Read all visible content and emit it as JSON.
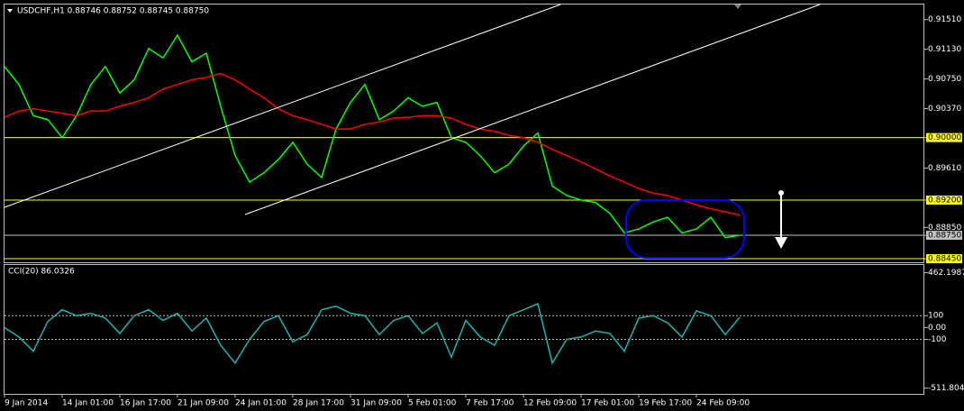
{
  "chart_data": [
    {
      "type": "line",
      "title": "USDCHF,H1  0.88746 0.88752 0.88745 0.88750",
      "categories": [
        "9 Jan 2014",
        null,
        null,
        null,
        "14 Jan 01:00",
        null,
        null,
        null,
        "16 Jan 17:00",
        null,
        null,
        null,
        "21 Jan 09:00",
        null,
        null,
        null,
        "24 Jan 01:00",
        null,
        null,
        null,
        "28 Jan 17:00",
        null,
        null,
        null,
        "31 Jan 09:00",
        null,
        null,
        null,
        "5 Feb 01:00",
        null,
        null,
        null,
        "7 Feb 17:00",
        null,
        null,
        null,
        "12 Feb 09:00",
        null,
        null,
        null,
        "17 Feb 01:00",
        null,
        null,
        null,
        "19 Feb 17:00",
        null,
        null,
        null,
        "24 Feb 09:00",
        null,
        null,
        null
      ],
      "series": [
        {
          "name": "USDCHF",
          "color": "#00ff00",
          "values": [
            0.9091,
            0.9068,
            0.9028,
            0.9023,
            0.9,
            0.9028,
            0.9068,
            0.9091,
            0.9057,
            0.9074,
            0.9114,
            0.9102,
            0.9131,
            0.9097,
            0.9108,
            0.904,
            0.8977,
            0.8943,
            0.8955,
            0.8972,
            0.8994,
            0.8966,
            0.8949,
            0.9011,
            0.9045,
            0.9068,
            0.9023,
            0.9034,
            0.9051,
            0.904,
            0.9045,
            0.9,
            0.8994,
            0.8977,
            0.8955,
            0.8966,
            0.8989,
            0.9006,
            0.8938,
            0.8926,
            0.892,
            0.8917,
            0.8903,
            0.8878,
            0.8883,
            0.8892,
            0.8898,
            0.8878,
            0.8883,
            0.8898,
            0.8872,
            0.8875
          ]
        },
        {
          "name": "MA",
          "color": "#ff0000",
          "values": [
            0.9026,
            0.9034,
            0.9037,
            0.9034,
            0.9031,
            0.9028,
            0.9034,
            0.9034,
            0.904,
            0.9045,
            0.9051,
            0.9062,
            0.9068,
            0.9074,
            0.9077,
            0.9082,
            0.9074,
            0.9062,
            0.9051,
            0.9037,
            0.9028,
            0.9023,
            0.9017,
            0.9011,
            0.9011,
            0.9017,
            0.902,
            0.9025,
            0.9026,
            0.9028,
            0.9028,
            0.9025,
            0.9017,
            0.9011,
            0.9008,
            0.9003,
            0.9,
            0.8994,
            0.8985,
            0.8977,
            0.8969,
            0.896,
            0.8951,
            0.8943,
            0.8935,
            0.8929,
            0.8926,
            0.892,
            0.8914,
            0.8909,
            0.8905,
            0.8901
          ]
        }
      ],
      "ylim": [
        0.88416,
        0.91703
      ],
      "yticks": [
        {
          "value": 0.9151,
          "label": "0.91510"
        },
        {
          "value": 0.9113,
          "label": "0.91130"
        },
        {
          "value": 0.9075,
          "label": "0.90750"
        },
        {
          "value": 0.9037,
          "label": "0.90370"
        },
        {
          "value": 0.9,
          "label": "0.90000",
          "color": "#ffff00"
        },
        {
          "value": 0.8961,
          "label": "0.89610"
        },
        {
          "value": 0.892,
          "label": "0.89200",
          "color": "#ffff00"
        },
        {
          "value": 0.8885,
          "label": "0.88850"
        },
        {
          "value": 0.8875,
          "label": "0.88750",
          "color": "#c0c0c0"
        },
        {
          "value": 0.8845,
          "label": "0.88450",
          "color": "#ffff00"
        }
      ]
    },
    {
      "type": "line",
      "title": "CCI(20) 86.0326",
      "series": [
        {
          "name": "CCI(20)",
          "color": "#20b2aa",
          "values": [
            0,
            -80,
            -200,
            50,
            150,
            100,
            120,
            80,
            -50,
            100,
            150,
            60,
            120,
            -30,
            80,
            -150,
            -300,
            -100,
            50,
            100,
            -120,
            -60,
            150,
            180,
            120,
            100,
            -60,
            60,
            100,
            -50,
            40,
            -250,
            60,
            -80,
            -150,
            100,
            150,
            200,
            -300,
            -100,
            -80,
            -30,
            -50,
            -200,
            80,
            100,
            40,
            -80,
            140,
            100,
            -60,
            86.0326
          ]
        }
      ],
      "ylim": [
        -560,
        520
      ],
      "yticks": [
        462.1987,
        100,
        {
          "value": 0,
          "label": "0.00"
        },
        -100,
        -511.8047
      ],
      "levels": [
        100,
        -100
      ]
    }
  ]
}
